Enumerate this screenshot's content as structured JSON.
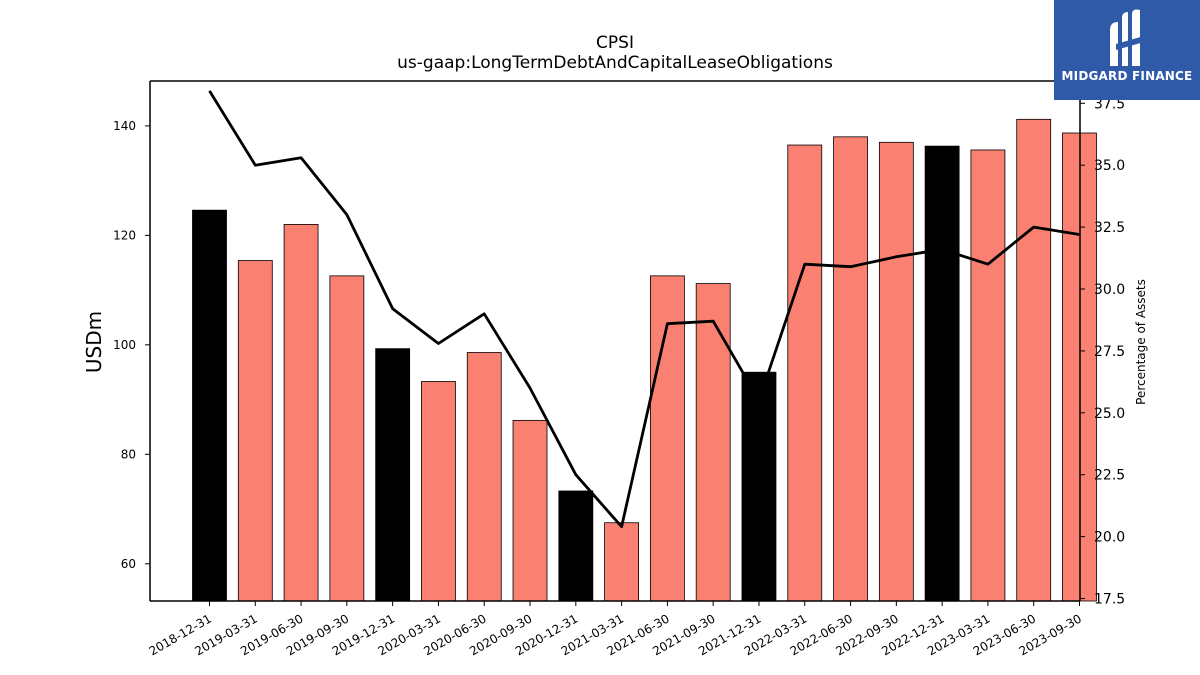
{
  "chart_data": {
    "type": "bar",
    "title": "CPSI",
    "subtitle": "us-gaap:LongTermDebtAndCapitalLeaseObligations",
    "ylabel": "USDm",
    "y2label": "Percentage of Assets",
    "ylim": [
      53.2,
      148.2
    ],
    "y2lim": [
      17.4,
      38.4
    ],
    "yticks": [
      60,
      80,
      100,
      120,
      140
    ],
    "y2ticks": [
      "17.5",
      "20.0",
      "22.5",
      "25.0",
      "27.5",
      "30.0",
      "32.5",
      "35.0",
      "37.5"
    ],
    "categories": [
      "2018-12-31",
      "2019-03-31",
      "2019-06-30",
      "2019-09-30",
      "2019-12-31",
      "2020-03-31",
      "2020-06-30",
      "2020-09-30",
      "2020-12-31",
      "2021-03-31",
      "2021-06-30",
      "2021-09-30",
      "2021-12-31",
      "2022-03-31",
      "2022-06-30",
      "2022-09-30",
      "2022-12-31",
      "2023-03-31",
      "2023-06-30",
      "2023-09-30"
    ],
    "series": [
      {
        "kind": "bar",
        "values": [
          124.6,
          115.4,
          122.0,
          112.6,
          99.3,
          93.3,
          98.6,
          86.2,
          73.3,
          67.5,
          112.6,
          111.2,
          95.0,
          136.5,
          138.0,
          137.0,
          136.3,
          135.6,
          141.2,
          138.7
        ],
        "colors": [
          "#000000",
          "#fa8072",
          "#fa8072",
          "#fa8072",
          "#000000",
          "#fa8072",
          "#fa8072",
          "#fa8072",
          "#000000",
          "#fa8072",
          "#fa8072",
          "#fa8072",
          "#000000",
          "#fa8072",
          "#fa8072",
          "#fa8072",
          "#000000",
          "#fa8072",
          "#fa8072",
          "#fa8072"
        ]
      },
      {
        "kind": "line",
        "axis": "right",
        "color": "#000000",
        "values": [
          38.0,
          35.0,
          35.3,
          33.0,
          29.2,
          27.8,
          29.0,
          26.0,
          22.5,
          20.4,
          28.6,
          28.7,
          25.5,
          31.0,
          30.9,
          31.3,
          31.6,
          31.0,
          32.5,
          32.2
        ]
      }
    ],
    "grid": false,
    "legend": "none"
  },
  "logo": {
    "text": "MIDGARD FINANCE",
    "color": "#2f5aa8"
  }
}
